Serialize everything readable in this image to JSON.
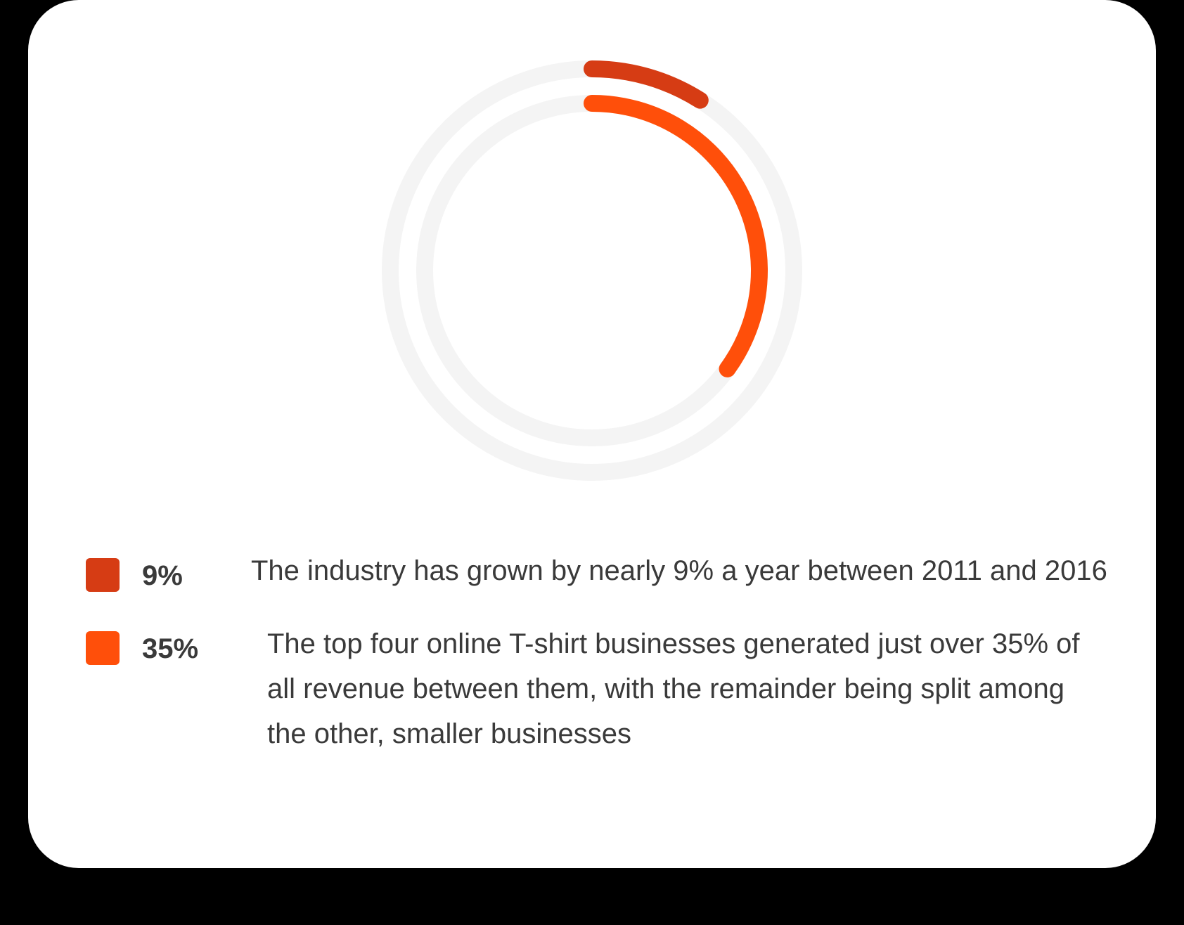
{
  "chart_data": {
    "type": "radial-bar",
    "series": [
      {
        "value": 9,
        "label": "9%",
        "color": "#d63c14",
        "description": "The industry has grown by nearly 9% a year between 2011 and 2016"
      },
      {
        "value": 35,
        "label": "35%",
        "color": "#ff4f0a",
        "description": "The top four online T-shirt businesses generated just over 35% of all revenue between them, with the remainder being split among the other, smaller businesses"
      }
    ],
    "max": 100,
    "track_color": "#f4f4f4"
  }
}
